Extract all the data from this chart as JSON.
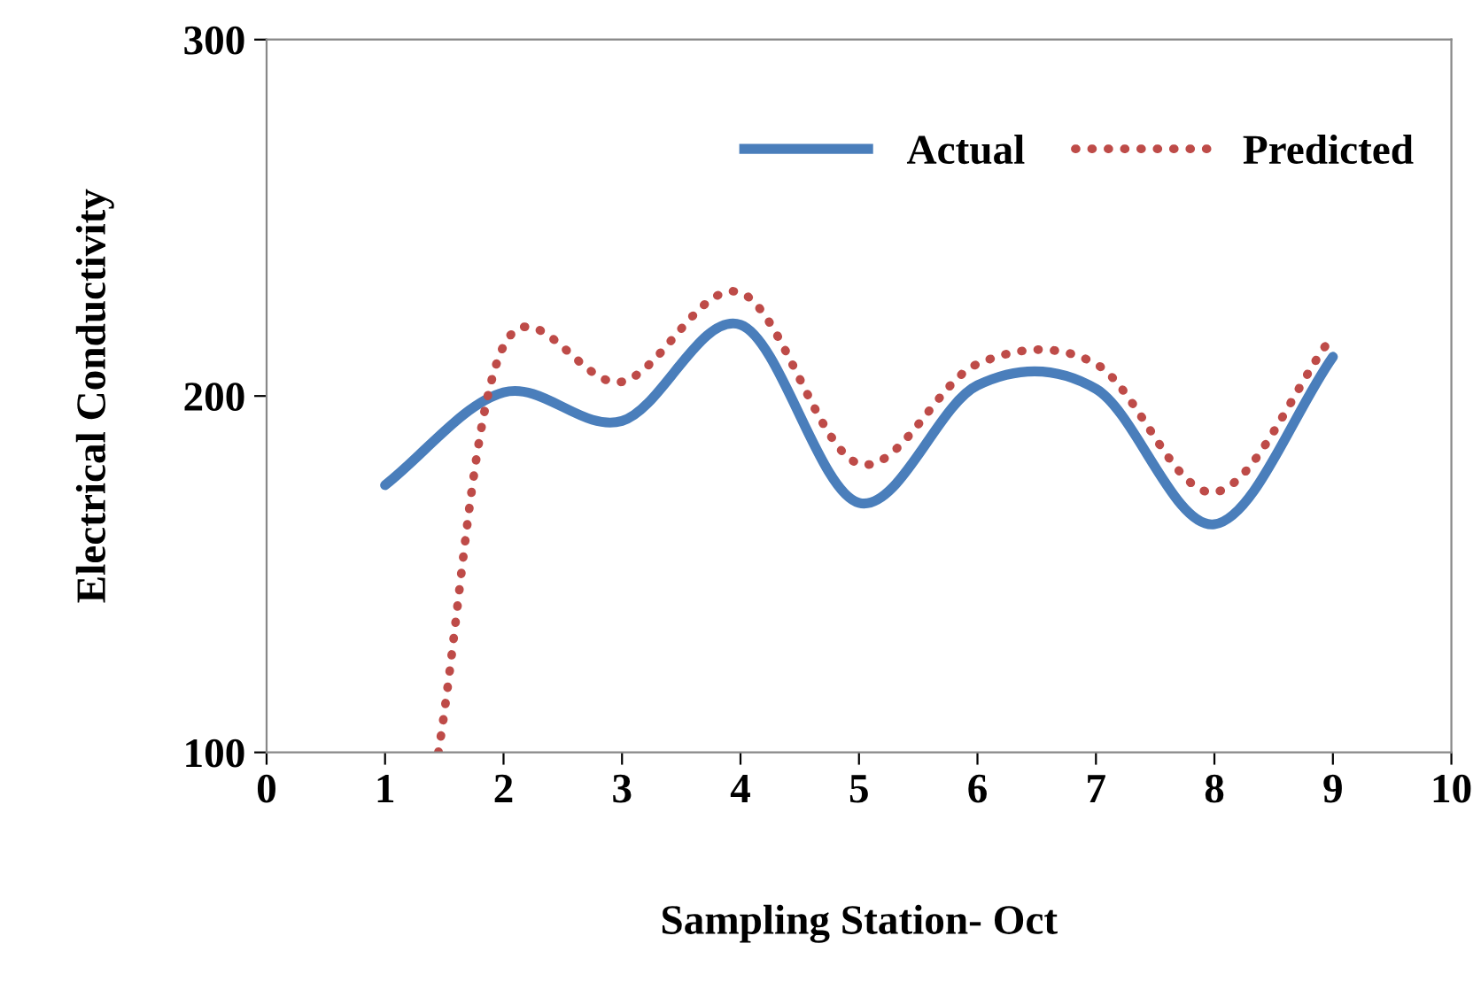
{
  "chart_data": {
    "type": "line",
    "xlabel": "Sampling Station- Oct",
    "ylabel": "Electrical Conductivity",
    "xlim": [
      0,
      10
    ],
    "xticks": [
      0,
      1,
      2,
      3,
      4,
      5,
      6,
      7,
      8,
      9,
      10
    ],
    "ylim": [
      100,
      300
    ],
    "yticks": [
      100,
      200,
      300
    ],
    "grid": false,
    "legend": "top right",
    "marker": "none",
    "series": [
      {
        "name": "Actual",
        "color": "#4a7ebb",
        "line_style": "solid",
        "x": [
          1,
          2,
          3,
          4,
          5,
          6,
          7,
          8,
          9
        ],
        "values": [
          175,
          201,
          193,
          220,
          170,
          203,
          202,
          164,
          211
        ]
      },
      {
        "name": "Predicted",
        "color": "#be4b48",
        "line_style": "dotted",
        "x": [
          1.45,
          2,
          3,
          4,
          5,
          6,
          7,
          8,
          9
        ],
        "values": [
          100,
          214,
          204,
          229,
          181,
          209,
          209,
          173,
          217
        ]
      }
    ]
  }
}
